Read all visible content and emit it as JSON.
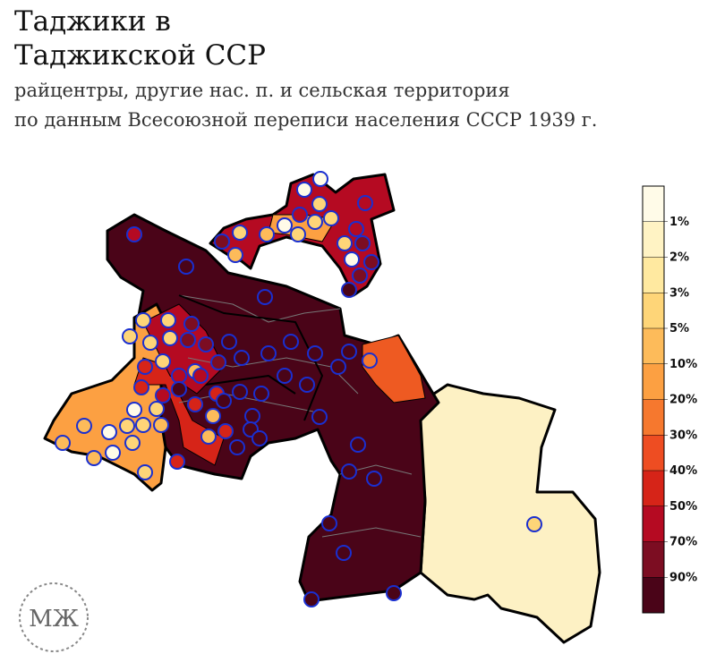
{
  "header": {
    "title_lines": [
      "Таджики в",
      "Таджикской ССР"
    ],
    "subtitle_lines": [
      "райцентры, другие нас. п. и сельская территория",
      "по данным Всесоюзной переписи населения СССР 1939 г."
    ]
  },
  "legend": {
    "labels": [
      "1%",
      "2%",
      "3%",
      "5%",
      "10%",
      "20%",
      "30%",
      "40%",
      "50%",
      "70%",
      "90%"
    ],
    "colors": [
      "#fffbe8",
      "#fff3c4",
      "#ffe9a0",
      "#fed578",
      "#fdbb5a",
      "#fca042",
      "#f6782e",
      "#ee4d22",
      "#d62418",
      "#b50a22",
      "#7c0d22",
      "#4a0418"
    ]
  },
  "logo": "МЖ"
}
